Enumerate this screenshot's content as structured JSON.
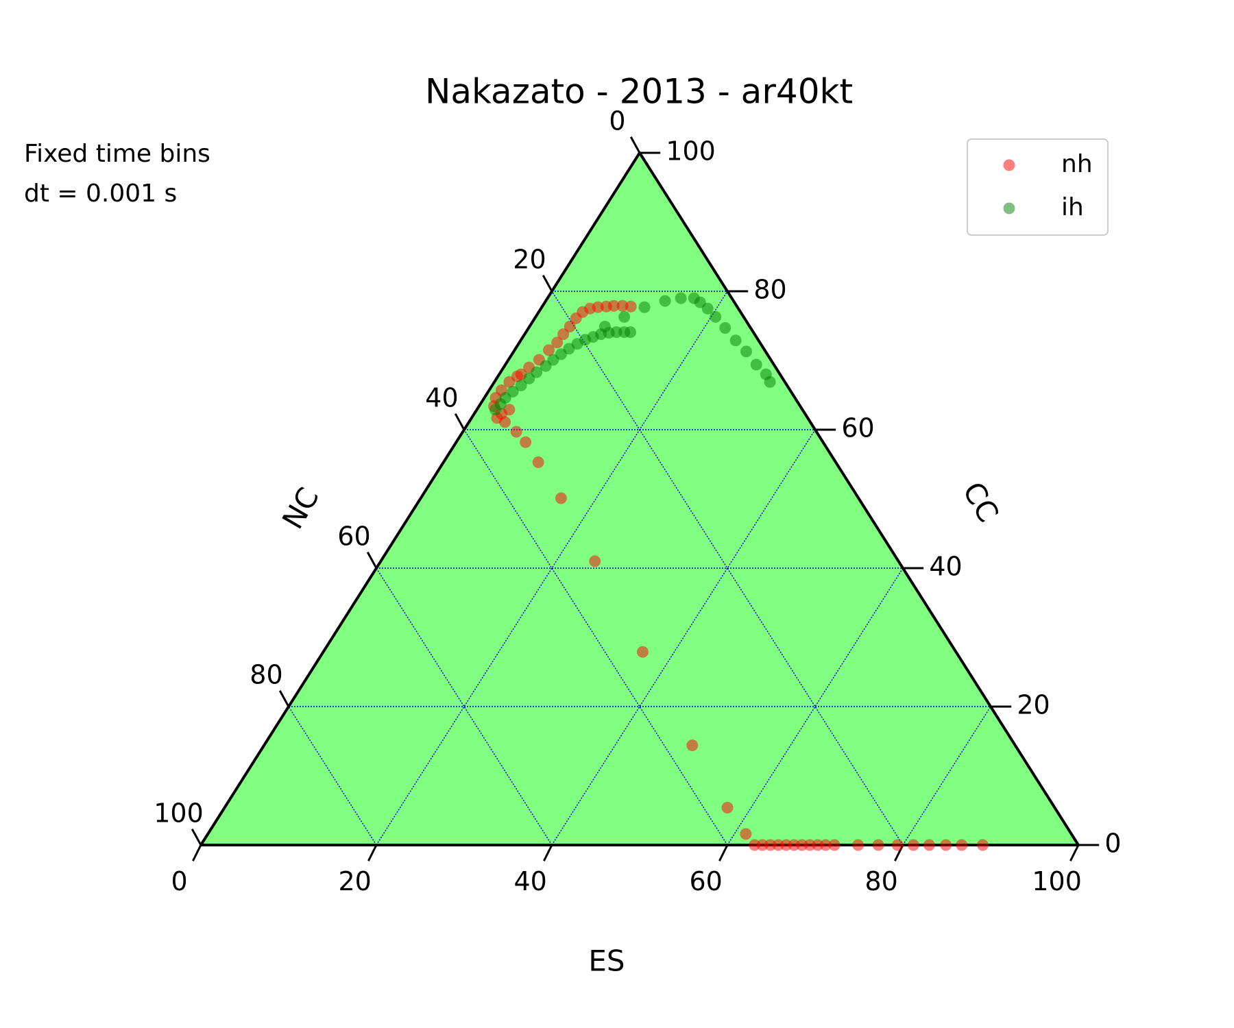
{
  "chart_data": {
    "type": "ternary",
    "title": "Nakazato - 2013 - ar40kt",
    "annotations": [
      "Fixed time bins",
      "dt = 0.001 s"
    ],
    "axes": {
      "es": {
        "label": "ES",
        "lim": [
          0,
          100
        ],
        "ticks": [
          0,
          20,
          40,
          60,
          80,
          100
        ]
      },
      "nc": {
        "label": "NC",
        "lim": [
          0,
          100
        ],
        "ticks": [
          0,
          20,
          40,
          60,
          80,
          100
        ]
      },
      "cc": {
        "label": "CC",
        "lim": [
          0,
          100
        ],
        "ticks": [
          0,
          20,
          40,
          60,
          80,
          100
        ]
      }
    },
    "grid": true,
    "fill_color": "#80ff80",
    "grid_color": "#0000cc",
    "legend": "upper right",
    "series": [
      {
        "name": "nh",
        "color": "#ff0000",
        "es": [
          2.9,
          3.1,
          3.7,
          1.7,
          1.3,
          1.4,
          1.7,
          2.2,
          2.5,
          2.9,
          3.5,
          3.9,
          4.3,
          4.4,
          4.6,
          4.7,
          5.0,
          5.6,
          6.4,
          7.3,
          8.1,
          9.1,
          10.1,
          4.1,
          6.1,
          7.9,
          10.8,
          16.0,
          24.4,
          36.4,
          48.8,
          57.3,
          61.3,
          63.1,
          64.0,
          64.9,
          65.8,
          66.7,
          67.6,
          68.5,
          69.4,
          70.3,
          71.2,
          72.2,
          74.9,
          77.2,
          79.4,
          81.2,
          83.0,
          84.9,
          86.7,
          89.1
        ],
        "cc": [
          61.7,
          62.3,
          62.9,
          63.4,
          64.6,
          65.7,
          66.9,
          67.7,
          68.0,
          69.0,
          70.1,
          71.5,
          72.6,
          73.8,
          74.9,
          76.1,
          77.0,
          77.5,
          77.7,
          77.8,
          77.9,
          77.9,
          77.8,
          61.1,
          59.7,
          58.2,
          55.3,
          50.1,
          41.0,
          27.9,
          14.4,
          5.4,
          1.6,
          0,
          0,
          0,
          0,
          0,
          0,
          0,
          0,
          0,
          0,
          0,
          0,
          0,
          0,
          0,
          0,
          0,
          0,
          0
        ]
      },
      {
        "name": "ih",
        "color": "#008000",
        "es": [
          2.1,
          2.3,
          2.4,
          2.8,
          3.3,
          3.7,
          4.1,
          4.7,
          5.1,
          5.6,
          6.1,
          6.7,
          7.3,
          8.0,
          8.7,
          9.5,
          10.3,
          11.2,
          11.9,
          8.6,
          10.1,
          11.7,
          13.6,
          15.2,
          16.7,
          17.7,
          19.0,
          20.5,
          22.4,
          24.5,
          26.5,
          28.6,
          30.4,
          31.4
        ],
        "cc": [
          62.9,
          63.7,
          64.6,
          65.5,
          66.4,
          67.4,
          68.3,
          69.2,
          70.1,
          70.9,
          71.7,
          72.4,
          73.0,
          73.4,
          73.8,
          74.0,
          74.1,
          74.1,
          74.1,
          74.9,
          76.3,
          77.7,
          78.6,
          79.0,
          79.0,
          78.4,
          77.5,
          76.3,
          74.7,
          72.9,
          71.3,
          69.4,
          68.0,
          66.9
        ]
      }
    ]
  }
}
